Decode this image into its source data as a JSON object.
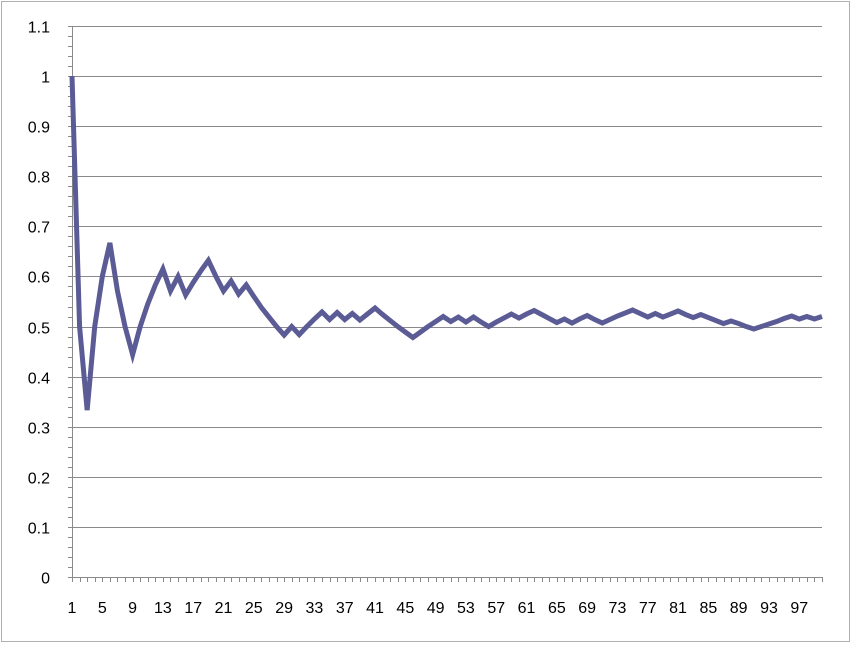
{
  "chart_data": {
    "type": "line",
    "title": "",
    "xlabel": "",
    "ylabel": "",
    "ylim": [
      0,
      1.1
    ],
    "xlim": [
      1,
      100
    ],
    "y_ticks": [
      {
        "value": 0,
        "label": "0"
      },
      {
        "value": 0.1,
        "label": "0.1"
      },
      {
        "value": 0.2,
        "label": "0.2"
      },
      {
        "value": 0.3,
        "label": "0.3"
      },
      {
        "value": 0.4,
        "label": "0.4"
      },
      {
        "value": 0.5,
        "label": "0.5"
      },
      {
        "value": 0.6,
        "label": "0.6"
      },
      {
        "value": 0.7,
        "label": "0.7"
      },
      {
        "value": 0.8,
        "label": "0.8"
      },
      {
        "value": 0.9,
        "label": "0.9"
      },
      {
        "value": 1,
        "label": "1"
      },
      {
        "value": 1.1,
        "label": "1.1"
      }
    ],
    "x_tick_labels": [
      "1",
      "5",
      "9",
      "13",
      "17",
      "21",
      "25",
      "29",
      "33",
      "37",
      "41",
      "45",
      "49",
      "53",
      "57",
      "61",
      "65",
      "69",
      "73",
      "77",
      "81",
      "85",
      "89",
      "93",
      "97"
    ],
    "grid": {
      "horizontal": true,
      "vertical": false
    },
    "legend": "none",
    "line_color": "#5b5b95",
    "series": [
      {
        "x": [
          1,
          2,
          3,
          4,
          5,
          6,
          7,
          8,
          9,
          10,
          11,
          12,
          13,
          14,
          15,
          16,
          17,
          18,
          19,
          20,
          21,
          22,
          23,
          24,
          25,
          26,
          27,
          28,
          29,
          30,
          31,
          32,
          33,
          34,
          35,
          36,
          37,
          38,
          39,
          40,
          41,
          42,
          43,
          44,
          45,
          46,
          47,
          48,
          49,
          50,
          51,
          52,
          53,
          54,
          55,
          56,
          57,
          58,
          59,
          60,
          61,
          62,
          63,
          64,
          65,
          66,
          67,
          68,
          69,
          70,
          71,
          72,
          73,
          74,
          75,
          76,
          77,
          78,
          79,
          80,
          81,
          82,
          83,
          84,
          85,
          86,
          87,
          88,
          89,
          90,
          91,
          92,
          93,
          94,
          95,
          96,
          97,
          98,
          99,
          100
        ],
        "values": [
          1,
          0.5,
          0.333,
          0.5,
          0.6,
          0.667,
          0.571,
          0.5,
          0.444,
          0.5,
          0.545,
          0.583,
          0.615,
          0.571,
          0.6,
          0.563,
          0.588,
          0.611,
          0.632,
          0.6,
          0.571,
          0.591,
          0.565,
          0.583,
          0.56,
          0.538,
          0.519,
          0.5,
          0.483,
          0.5,
          0.484,
          0.5,
          0.515,
          0.529,
          0.514,
          0.528,
          0.514,
          0.526,
          0.513,
          0.525,
          0.537,
          0.524,
          0.512,
          0.5,
          0.489,
          0.478,
          0.489,
          0.5,
          0.51,
          0.52,
          0.51,
          0.519,
          0.509,
          0.519,
          0.509,
          0.5,
          0.509,
          0.517,
          0.525,
          0.517,
          0.525,
          0.532,
          0.524,
          0.516,
          0.508,
          0.515,
          0.507,
          0.515,
          0.522,
          0.514,
          0.507,
          0.514,
          0.521,
          0.527,
          0.533,
          0.526,
          0.519,
          0.526,
          0.519,
          0.525,
          0.531,
          0.524,
          0.518,
          0.524,
          0.518,
          0.512,
          0.506,
          0.511,
          0.506,
          0.5,
          0.495,
          0.5,
          0.505,
          0.51,
          0.516,
          0.521,
          0.515,
          0.52,
          0.515,
          0.52
        ]
      }
    ]
  }
}
